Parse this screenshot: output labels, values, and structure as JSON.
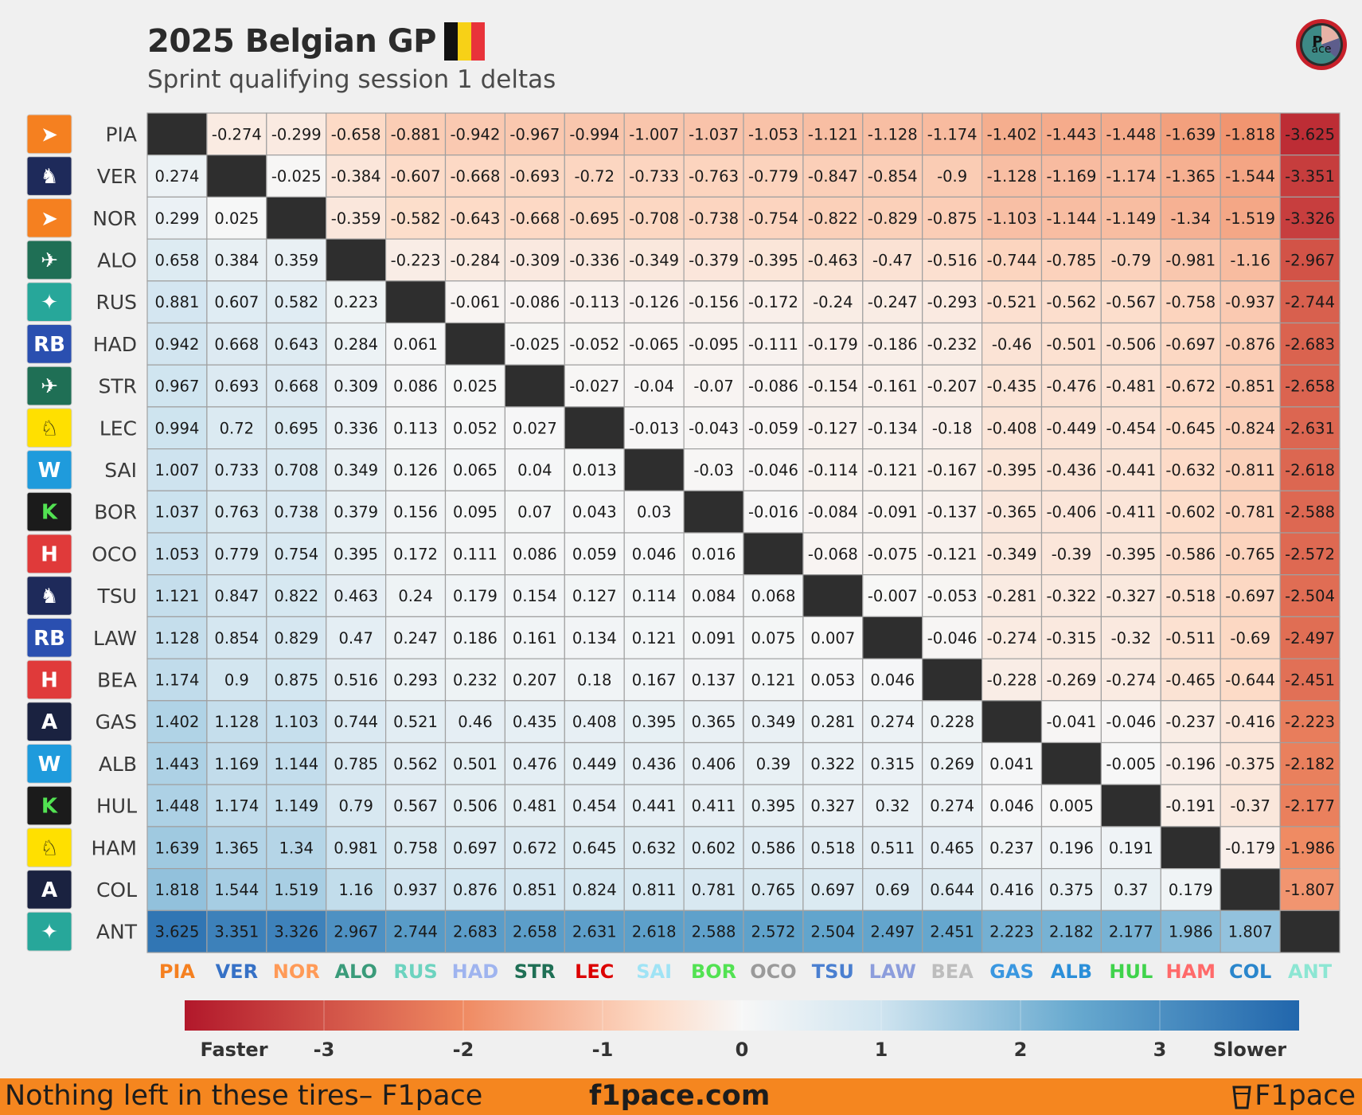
{
  "header": {
    "title": "2025 Belgian GP",
    "subtitle": "Sprint qualifying session 1 deltas"
  },
  "colors": {
    "faster": "#b2182b",
    "neutral": "#f7f7f7",
    "slower": "#2166ac",
    "diagonal": "#2e2e2e",
    "footer_bg": "#f5861f",
    "flag": [
      "#111111",
      "#f7d117",
      "#e8333a"
    ]
  },
  "legend": {
    "left_label": "Faster",
    "right_label": "Slower",
    "ticks": [
      "-3",
      "-2",
      "-1",
      "0",
      "1",
      "2",
      "3"
    ]
  },
  "footer": {
    "tagline": "Nothing left in these tires– F1pace",
    "site": "f1pace.com",
    "brand": "F1pace"
  },
  "teams": [
    {
      "driver": "PIA",
      "team": "mclaren",
      "logo": "mclaren-logo",
      "color": "#f58020"
    },
    {
      "driver": "VER",
      "team": "redbull",
      "logo": "redbull-logo",
      "color": "#3671c6"
    },
    {
      "driver": "NOR",
      "team": "mclaren",
      "logo": "mclaren-logo",
      "color": "#ff9a57"
    },
    {
      "driver": "ALO",
      "team": "astonmartin",
      "logo": "astonmartin-logo",
      "color": "#3a9b7a"
    },
    {
      "driver": "RUS",
      "team": "mercedes",
      "logo": "mercedes-logo",
      "color": "#6cd3bf"
    },
    {
      "driver": "HAD",
      "team": "racingbulls",
      "logo": "racingbulls-logo",
      "color": "#9fb4ef"
    },
    {
      "driver": "STR",
      "team": "astonmartin",
      "logo": "astonmartin-logo",
      "color": "#1f6f55"
    },
    {
      "driver": "LEC",
      "team": "ferrari",
      "logo": "ferrari-logo",
      "color": "#dc0000"
    },
    {
      "driver": "SAI",
      "team": "williams",
      "logo": "williams-logo",
      "color": "#9fe3f5"
    },
    {
      "driver": "BOR",
      "team": "sauber",
      "logo": "sauber-logo",
      "color": "#52e252"
    },
    {
      "driver": "OCO",
      "team": "haas",
      "logo": "haas-logo",
      "color": "#9a9a9a"
    },
    {
      "driver": "TSU",
      "team": "redbull",
      "logo": "redbull-logo",
      "color": "#4a7fd0"
    },
    {
      "driver": "LAW",
      "team": "racingbulls",
      "logo": "racingbulls-logo",
      "color": "#8c9ddc"
    },
    {
      "driver": "BEA",
      "team": "haas",
      "logo": "haas-logo",
      "color": "#bdbdbd"
    },
    {
      "driver": "GAS",
      "team": "alpine",
      "logo": "alpine-logo",
      "color": "#3a97e0"
    },
    {
      "driver": "ALB",
      "team": "williams",
      "logo": "williams-logo",
      "color": "#2b8fd9"
    },
    {
      "driver": "HUL",
      "team": "sauber",
      "logo": "sauber-logo",
      "color": "#3fd34b"
    },
    {
      "driver": "HAM",
      "team": "ferrari",
      "logo": "ferrari-logo",
      "color": "#ff6a6a"
    },
    {
      "driver": "COL",
      "team": "alpine",
      "logo": "alpine-logo",
      "color": "#2a86cc"
    },
    {
      "driver": "ANT",
      "team": "mercedes",
      "logo": "mercedes-logo",
      "color": "#8ce6d3"
    }
  ],
  "chart_data": {
    "type": "heatmap",
    "title": "2025 Belgian GP",
    "subtitle": "Sprint qualifying session 1 deltas",
    "colorbar": {
      "vmin": -4,
      "vmax": 4,
      "left_label": "Faster",
      "right_label": "Slower",
      "ticks": [
        -3,
        -2,
        -1,
        0,
        1,
        2,
        3
      ]
    },
    "rows": [
      "PIA",
      "VER",
      "NOR",
      "ALO",
      "RUS",
      "HAD",
      "STR",
      "LEC",
      "SAI",
      "BOR",
      "OCO",
      "TSU",
      "LAW",
      "BEA",
      "GAS",
      "ALB",
      "HUL",
      "HAM",
      "COL",
      "ANT"
    ],
    "cols": [
      "PIA",
      "VER",
      "NOR",
      "ALO",
      "RUS",
      "HAD",
      "STR",
      "LEC",
      "SAI",
      "BOR",
      "OCO",
      "TSU",
      "LAW",
      "BEA",
      "GAS",
      "ALB",
      "HUL",
      "HAM",
      "COL",
      "ANT"
    ],
    "values": [
      [
        null,
        "-0.274",
        "-0.299",
        "-0.658",
        "-0.881",
        "-0.942",
        "-0.967",
        "-0.994",
        "-1.007",
        "-1.037",
        "-1.053",
        "-1.121",
        "-1.128",
        "-1.174",
        "-1.402",
        "-1.443",
        "-1.448",
        "-1.639",
        "-1.818",
        "-3.625"
      ],
      [
        "0.274",
        null,
        "-0.025",
        "-0.384",
        "-0.607",
        "-0.668",
        "-0.693",
        "-0.72",
        "-0.733",
        "-0.763",
        "-0.779",
        "-0.847",
        "-0.854",
        "-0.9",
        "-1.128",
        "-1.169",
        "-1.174",
        "-1.365",
        "-1.544",
        "-3.351"
      ],
      [
        "0.299",
        "0.025",
        null,
        "-0.359",
        "-0.582",
        "-0.643",
        "-0.668",
        "-0.695",
        "-0.708",
        "-0.738",
        "-0.754",
        "-0.822",
        "-0.829",
        "-0.875",
        "-1.103",
        "-1.144",
        "-1.149",
        "-1.34",
        "-1.519",
        "-3.326"
      ],
      [
        "0.658",
        "0.384",
        "0.359",
        null,
        "-0.223",
        "-0.284",
        "-0.309",
        "-0.336",
        "-0.349",
        "-0.379",
        "-0.395",
        "-0.463",
        "-0.47",
        "-0.516",
        "-0.744",
        "-0.785",
        "-0.79",
        "-0.981",
        "-1.16",
        "-2.967"
      ],
      [
        "0.881",
        "0.607",
        "0.582",
        "0.223",
        null,
        "-0.061",
        "-0.086",
        "-0.113",
        "-0.126",
        "-0.156",
        "-0.172",
        "-0.24",
        "-0.247",
        "-0.293",
        "-0.521",
        "-0.562",
        "-0.567",
        "-0.758",
        "-0.937",
        "-2.744"
      ],
      [
        "0.942",
        "0.668",
        "0.643",
        "0.284",
        "0.061",
        null,
        "-0.025",
        "-0.052",
        "-0.065",
        "-0.095",
        "-0.111",
        "-0.179",
        "-0.186",
        "-0.232",
        "-0.46",
        "-0.501",
        "-0.506",
        "-0.697",
        "-0.876",
        "-2.683"
      ],
      [
        "0.967",
        "0.693",
        "0.668",
        "0.309",
        "0.086",
        "0.025",
        null,
        "-0.027",
        "-0.04",
        "-0.07",
        "-0.086",
        "-0.154",
        "-0.161",
        "-0.207",
        "-0.435",
        "-0.476",
        "-0.481",
        "-0.672",
        "-0.851",
        "-2.658"
      ],
      [
        "0.994",
        "0.72",
        "0.695",
        "0.336",
        "0.113",
        "0.052",
        "0.027",
        null,
        "-0.013",
        "-0.043",
        "-0.059",
        "-0.127",
        "-0.134",
        "-0.18",
        "-0.408",
        "-0.449",
        "-0.454",
        "-0.645",
        "-0.824",
        "-2.631"
      ],
      [
        "1.007",
        "0.733",
        "0.708",
        "0.349",
        "0.126",
        "0.065",
        "0.04",
        "0.013",
        null,
        "-0.03",
        "-0.046",
        "-0.114",
        "-0.121",
        "-0.167",
        "-0.395",
        "-0.436",
        "-0.441",
        "-0.632",
        "-0.811",
        "-2.618"
      ],
      [
        "1.037",
        "0.763",
        "0.738",
        "0.379",
        "0.156",
        "0.095",
        "0.07",
        "0.043",
        "0.03",
        null,
        "-0.016",
        "-0.084",
        "-0.091",
        "-0.137",
        "-0.365",
        "-0.406",
        "-0.411",
        "-0.602",
        "-0.781",
        "-2.588"
      ],
      [
        "1.053",
        "0.779",
        "0.754",
        "0.395",
        "0.172",
        "0.111",
        "0.086",
        "0.059",
        "0.046",
        "0.016",
        null,
        "-0.068",
        "-0.075",
        "-0.121",
        "-0.349",
        "-0.39",
        "-0.395",
        "-0.586",
        "-0.765",
        "-2.572"
      ],
      [
        "1.121",
        "0.847",
        "0.822",
        "0.463",
        "0.24",
        "0.179",
        "0.154",
        "0.127",
        "0.114",
        "0.084",
        "0.068",
        null,
        "-0.007",
        "-0.053",
        "-0.281",
        "-0.322",
        "-0.327",
        "-0.518",
        "-0.697",
        "-2.504"
      ],
      [
        "1.128",
        "0.854",
        "0.829",
        "0.47",
        "0.247",
        "0.186",
        "0.161",
        "0.134",
        "0.121",
        "0.091",
        "0.075",
        "0.007",
        null,
        "-0.046",
        "-0.274",
        "-0.315",
        "-0.32",
        "-0.511",
        "-0.69",
        "-2.497"
      ],
      [
        "1.174",
        "0.9",
        "0.875",
        "0.516",
        "0.293",
        "0.232",
        "0.207",
        "0.18",
        "0.167",
        "0.137",
        "0.121",
        "0.053",
        "0.046",
        null,
        "-0.228",
        "-0.269",
        "-0.274",
        "-0.465",
        "-0.644",
        "-2.451"
      ],
      [
        "1.402",
        "1.128",
        "1.103",
        "0.744",
        "0.521",
        "0.46",
        "0.435",
        "0.408",
        "0.395",
        "0.365",
        "0.349",
        "0.281",
        "0.274",
        "0.228",
        null,
        "-0.041",
        "-0.046",
        "-0.237",
        "-0.416",
        "-2.223"
      ],
      [
        "1.443",
        "1.169",
        "1.144",
        "0.785",
        "0.562",
        "0.501",
        "0.476",
        "0.449",
        "0.436",
        "0.406",
        "0.39",
        "0.322",
        "0.315",
        "0.269",
        "0.041",
        null,
        "-0.005",
        "-0.196",
        "-0.375",
        "-2.182"
      ],
      [
        "1.448",
        "1.174",
        "1.149",
        "0.79",
        "0.567",
        "0.506",
        "0.481",
        "0.454",
        "0.441",
        "0.411",
        "0.395",
        "0.327",
        "0.32",
        "0.274",
        "0.046",
        "0.005",
        null,
        "-0.191",
        "-0.37",
        "-2.177"
      ],
      [
        "1.639",
        "1.365",
        "1.34",
        "0.981",
        "0.758",
        "0.697",
        "0.672",
        "0.645",
        "0.632",
        "0.602",
        "0.586",
        "0.518",
        "0.511",
        "0.465",
        "0.237",
        "0.196",
        "0.191",
        null,
        "-0.179",
        "-1.986"
      ],
      [
        "1.818",
        "1.544",
        "1.519",
        "1.16",
        "0.937",
        "0.876",
        "0.851",
        "0.824",
        "0.811",
        "0.781",
        "0.765",
        "0.697",
        "0.69",
        "0.644",
        "0.416",
        "0.375",
        "0.37",
        "0.179",
        null,
        "-1.807"
      ],
      [
        "3.625",
        "3.351",
        "3.326",
        "2.967",
        "2.744",
        "2.683",
        "2.658",
        "2.631",
        "2.618",
        "2.588",
        "2.572",
        "2.504",
        "2.497",
        "2.451",
        "2.223",
        "2.182",
        "2.177",
        "1.986",
        "1.807",
        null
      ]
    ]
  }
}
